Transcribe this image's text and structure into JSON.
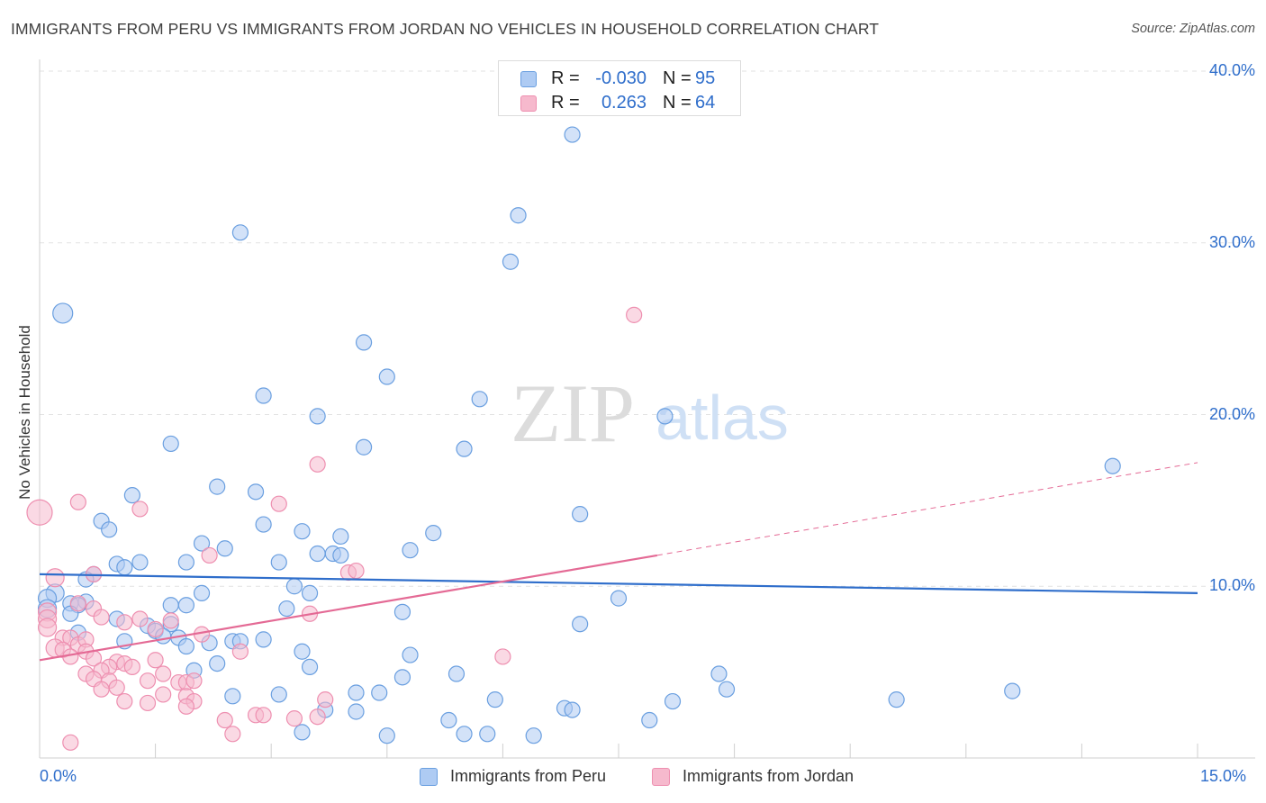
{
  "title": "IMMIGRANTS FROM PERU VS IMMIGRANTS FROM JORDAN NO VEHICLES IN HOUSEHOLD CORRELATION CHART",
  "source": "Source: ZipAtlas.com",
  "watermark": {
    "zip": "ZIP",
    "atlas": "atlas"
  },
  "stats_legend": {
    "rows": [
      {
        "r_label": "R =",
        "r_value": "-0.030",
        "n_label": "N =",
        "n_value": "95",
        "color": "#aecbf3"
      },
      {
        "r_label": "R =",
        "r_value": "0.263",
        "n_label": "N =",
        "n_value": "64",
        "color": "#f6b9cd"
      }
    ]
  },
  "chart_data": {
    "type": "scatter",
    "title": "IMMIGRANTS FROM PERU VS IMMIGRANTS FROM JORDAN NO VEHICLES IN HOUSEHOLD CORRELATION CHART",
    "xlabel": "",
    "ylabel": "No Vehicles in Household",
    "xlim": [
      0,
      15
    ],
    "ylim": [
      0,
      40
    ],
    "x_tick_labels": [
      "0.0%",
      "15.0%"
    ],
    "y_ticks": [
      10,
      20,
      30,
      40
    ],
    "y_tick_labels": [
      "10.0%",
      "20.0%",
      "30.0%",
      "40.0%"
    ],
    "grid": true,
    "legend_position": "bottom",
    "series": [
      {
        "name": "Immigrants from Peru",
        "color": "#6a9fe0",
        "fill": "#aecbf3",
        "trend": {
          "x": [
            0,
            15
          ],
          "y": [
            10.7,
            9.6
          ],
          "color": "#2f6ecb"
        },
        "points": [
          [
            6.9,
            36.3
          ],
          [
            6.2,
            31.6
          ],
          [
            6.1,
            28.9
          ],
          [
            2.6,
            30.6
          ],
          [
            0.3,
            25.9
          ],
          [
            4.2,
            24.2
          ],
          [
            4.5,
            22.2
          ],
          [
            2.9,
            21.1
          ],
          [
            5.7,
            20.9
          ],
          [
            3.6,
            19.9
          ],
          [
            8.1,
            19.9
          ],
          [
            1.7,
            18.3
          ],
          [
            4.2,
            18.1
          ],
          [
            5.5,
            18.0
          ],
          [
            13.9,
            17.0
          ],
          [
            2.3,
            15.8
          ],
          [
            2.8,
            15.5
          ],
          [
            1.2,
            15.3
          ],
          [
            7.0,
            14.2
          ],
          [
            0.8,
            13.8
          ],
          [
            0.9,
            13.3
          ],
          [
            2.9,
            13.6
          ],
          [
            3.4,
            13.2
          ],
          [
            3.9,
            12.9
          ],
          [
            5.1,
            13.1
          ],
          [
            2.1,
            12.5
          ],
          [
            2.4,
            12.2
          ],
          [
            4.8,
            12.1
          ],
          [
            3.6,
            11.9
          ],
          [
            3.8,
            11.9
          ],
          [
            3.9,
            11.8
          ],
          [
            1.0,
            11.3
          ],
          [
            1.3,
            11.4
          ],
          [
            1.1,
            11.1
          ],
          [
            1.9,
            11.4
          ],
          [
            3.1,
            11.4
          ],
          [
            0.7,
            10.7
          ],
          [
            0.6,
            10.4
          ],
          [
            3.3,
            10.0
          ],
          [
            0.2,
            9.6
          ],
          [
            0.1,
            9.3
          ],
          [
            2.1,
            9.6
          ],
          [
            3.5,
            9.6
          ],
          [
            7.5,
            9.3
          ],
          [
            0.4,
            9.0
          ],
          [
            0.6,
            9.1
          ],
          [
            1.7,
            8.9
          ],
          [
            1.9,
            8.9
          ],
          [
            0.5,
            8.9
          ],
          [
            3.2,
            8.7
          ],
          [
            4.7,
            8.5
          ],
          [
            0.1,
            8.7
          ],
          [
            0.4,
            8.4
          ],
          [
            1.0,
            8.1
          ],
          [
            1.4,
            7.7
          ],
          [
            1.7,
            7.8
          ],
          [
            7.0,
            7.8
          ],
          [
            0.5,
            7.3
          ],
          [
            1.5,
            7.4
          ],
          [
            1.6,
            7.1
          ],
          [
            1.8,
            7.0
          ],
          [
            1.1,
            6.8
          ],
          [
            2.5,
            6.8
          ],
          [
            2.9,
            6.9
          ],
          [
            2.2,
            6.7
          ],
          [
            2.6,
            6.8
          ],
          [
            1.9,
            6.5
          ],
          [
            3.4,
            6.2
          ],
          [
            4.8,
            6.0
          ],
          [
            2.3,
            5.5
          ],
          [
            3.5,
            5.3
          ],
          [
            2.0,
            5.1
          ],
          [
            4.7,
            4.7
          ],
          [
            5.4,
            4.9
          ],
          [
            8.8,
            4.9
          ],
          [
            8.9,
            4.0
          ],
          [
            12.6,
            3.9
          ],
          [
            4.1,
            3.8
          ],
          [
            4.4,
            3.8
          ],
          [
            2.5,
            3.6
          ],
          [
            3.1,
            3.7
          ],
          [
            5.9,
            3.4
          ],
          [
            8.2,
            3.3
          ],
          [
            11.1,
            3.4
          ],
          [
            3.7,
            2.8
          ],
          [
            4.1,
            2.7
          ],
          [
            6.8,
            2.9
          ],
          [
            6.9,
            2.8
          ],
          [
            5.3,
            2.2
          ],
          [
            7.9,
            2.2
          ],
          [
            3.4,
            1.5
          ],
          [
            5.5,
            1.4
          ],
          [
            5.8,
            1.4
          ],
          [
            4.5,
            1.3
          ],
          [
            6.4,
            1.3
          ]
        ]
      },
      {
        "name": "Immigrants from Jordan",
        "color": "#ee8fb0",
        "fill": "#f6b9cd",
        "trend": {
          "x": [
            0,
            8.0
          ],
          "y": [
            5.7,
            11.8
          ],
          "color": "#e46a95"
        },
        "trend_dashed": {
          "x": [
            8.0,
            15.0
          ],
          "y": [
            11.8,
            17.2
          ],
          "color": "#e46a95"
        },
        "points": [
          [
            0.0,
            14.3
          ],
          [
            0.5,
            14.9
          ],
          [
            1.3,
            14.5
          ],
          [
            7.7,
            25.8
          ],
          [
            3.6,
            17.1
          ],
          [
            3.1,
            14.8
          ],
          [
            2.2,
            11.8
          ],
          [
            4.0,
            10.8
          ],
          [
            4.1,
            10.9
          ],
          [
            0.7,
            10.7
          ],
          [
            0.2,
            10.5
          ],
          [
            0.5,
            9.0
          ],
          [
            0.7,
            8.7
          ],
          [
            0.1,
            8.5
          ],
          [
            3.5,
            8.4
          ],
          [
            0.1,
            8.1
          ],
          [
            0.8,
            8.2
          ],
          [
            1.1,
            7.9
          ],
          [
            1.3,
            8.1
          ],
          [
            1.7,
            8.0
          ],
          [
            0.1,
            7.6
          ],
          [
            1.5,
            7.5
          ],
          [
            2.1,
            7.2
          ],
          [
            0.3,
            7.0
          ],
          [
            0.4,
            7.0
          ],
          [
            0.5,
            6.6
          ],
          [
            0.6,
            6.9
          ],
          [
            0.2,
            6.4
          ],
          [
            0.3,
            6.3
          ],
          [
            0.6,
            6.2
          ],
          [
            2.6,
            6.2
          ],
          [
            6.0,
            5.9
          ],
          [
            0.4,
            5.9
          ],
          [
            0.7,
            5.8
          ],
          [
            1.0,
            5.6
          ],
          [
            1.1,
            5.5
          ],
          [
            1.5,
            5.7
          ],
          [
            0.9,
            5.3
          ],
          [
            1.2,
            5.3
          ],
          [
            0.8,
            5.1
          ],
          [
            0.6,
            4.9
          ],
          [
            1.6,
            4.9
          ],
          [
            0.7,
            4.6
          ],
          [
            0.9,
            4.5
          ],
          [
            1.4,
            4.5
          ],
          [
            1.8,
            4.4
          ],
          [
            1.9,
            4.4
          ],
          [
            2.0,
            4.5
          ],
          [
            0.8,
            4.0
          ],
          [
            1.6,
            3.7
          ],
          [
            1.9,
            3.6
          ],
          [
            3.7,
            3.4
          ],
          [
            1.1,
            3.3
          ],
          [
            1.4,
            3.2
          ],
          [
            2.0,
            3.3
          ],
          [
            1.9,
            3.0
          ],
          [
            2.8,
            2.5
          ],
          [
            2.9,
            2.5
          ],
          [
            3.3,
            2.3
          ],
          [
            3.6,
            2.4
          ],
          [
            2.4,
            2.2
          ],
          [
            2.5,
            1.4
          ],
          [
            0.4,
            0.9
          ],
          [
            1.0,
            4.1
          ]
        ]
      }
    ]
  },
  "bottom_legend": [
    {
      "label": "Immigrants from Peru",
      "color": "#aecbf3",
      "border": "#6a9fe0"
    },
    {
      "label": "Immigrants from Jordan",
      "color": "#f6b9cd",
      "border": "#ee8fb0"
    }
  ]
}
